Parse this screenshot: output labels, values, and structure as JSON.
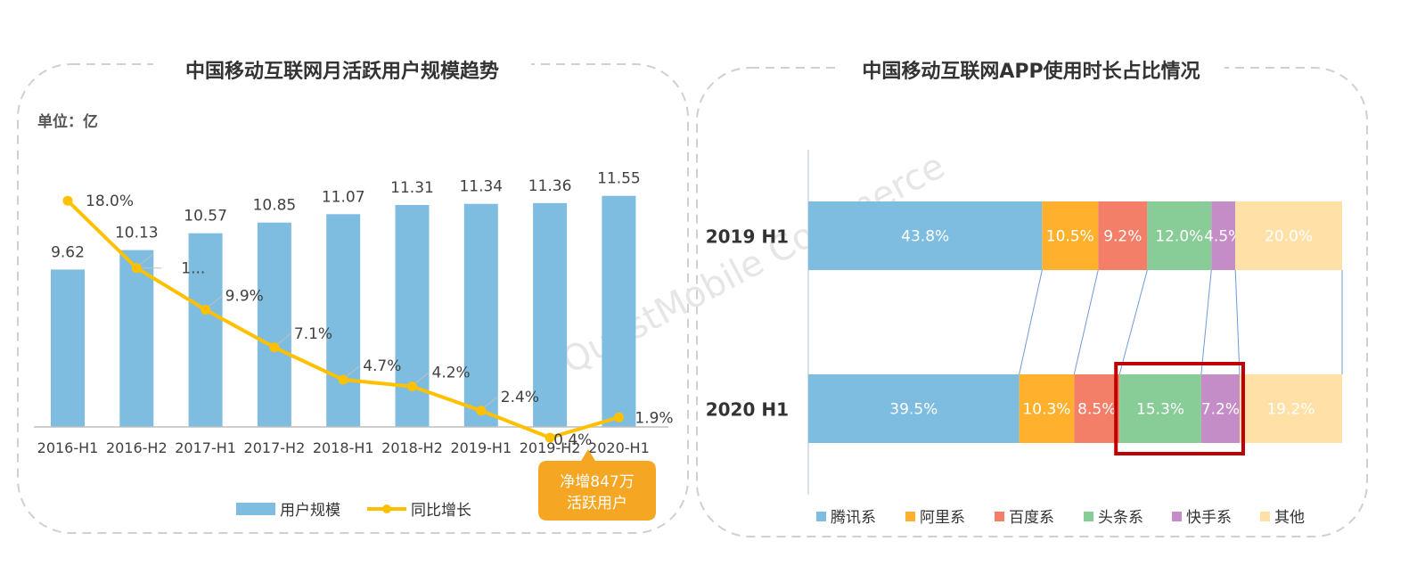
{
  "colors": {
    "bar": "#7fbde0",
    "line": "#ffc000",
    "panel_border": "#d0d0d0",
    "axis": "#bfbfbf",
    "callout": "#f5a623",
    "highlight": "#c00000",
    "connector": "#6f9bd6"
  },
  "left_panel": {
    "title": "中国移动互联网月活跃用户规模趋势",
    "unit": "单位：亿",
    "callout": [
      "净增847万",
      "活跃用户"
    ],
    "legend": [
      {
        "label": "用户规模",
        "kind": "bar"
      },
      {
        "label": "同比增长",
        "kind": "line"
      }
    ]
  },
  "right_panel": {
    "title": "中国移动互联网APP使用时长占比情况",
    "watermark": "QuestMobile Commerce"
  },
  "chart_data": [
    {
      "type": "bar+line",
      "title": "中国移动互联网月活跃用户规模趋势",
      "ylabel": "单位：亿",
      "categories": [
        "2016-H1",
        "2016-H2",
        "2017-H1",
        "2017-H2",
        "2018-H1",
        "2018-H2",
        "2019-H1",
        "2019-H2",
        "2020-H1"
      ],
      "series": [
        {
          "name": "用户规模",
          "type": "bar",
          "values": [
            9.62,
            10.13,
            10.57,
            10.85,
            11.07,
            11.31,
            11.34,
            11.36,
            11.55
          ],
          "labels": [
            "9.62",
            "10.13",
            "10.57",
            "10.85",
            "11.07",
            "11.31",
            "11.34",
            "11.36",
            "11.55"
          ]
        },
        {
          "name": "同比增长",
          "type": "line",
          "values": [
            18.0,
            13.0,
            9.9,
            7.1,
            4.7,
            4.2,
            2.4,
            0.4,
            1.9
          ],
          "labels": [
            "18.0%",
            "1...",
            "9.9%",
            "7.1%",
            "4.7%",
            "4.2%",
            "2.4%",
            "0.4%",
            "1.9%"
          ]
        }
      ],
      "bar_ylim": [
        5.5,
        12.5
      ],
      "line_ylim": [
        0,
        20
      ]
    },
    {
      "type": "stacked_bar_horizontal_100",
      "title": "中国移动互联网APP使用时长占比情况",
      "categories": [
        "2019 H1",
        "2020 H1"
      ],
      "segments": [
        "腾讯系",
        "阿里系",
        "百度系",
        "头条系",
        "快手系",
        "其他"
      ],
      "segment_colors": [
        "#7fbde0",
        "#ffb12e",
        "#f47f68",
        "#88cc97",
        "#c58dc8",
        "#ffe1a8"
      ],
      "values": [
        [
          43.8,
          10.5,
          9.2,
          12.0,
          4.5,
          20.0
        ],
        [
          39.5,
          10.3,
          8.5,
          15.3,
          7.2,
          19.2
        ]
      ],
      "labels": [
        [
          "43.8%",
          "10.5%",
          "9.2%",
          "12.0%",
          "4.5%",
          "20.0%"
        ],
        [
          "39.5%",
          "10.3%",
          "8.5%",
          "15.3%",
          "7.2%",
          "19.2%"
        ]
      ],
      "highlight": [
        "头条系",
        "快手系"
      ]
    }
  ]
}
